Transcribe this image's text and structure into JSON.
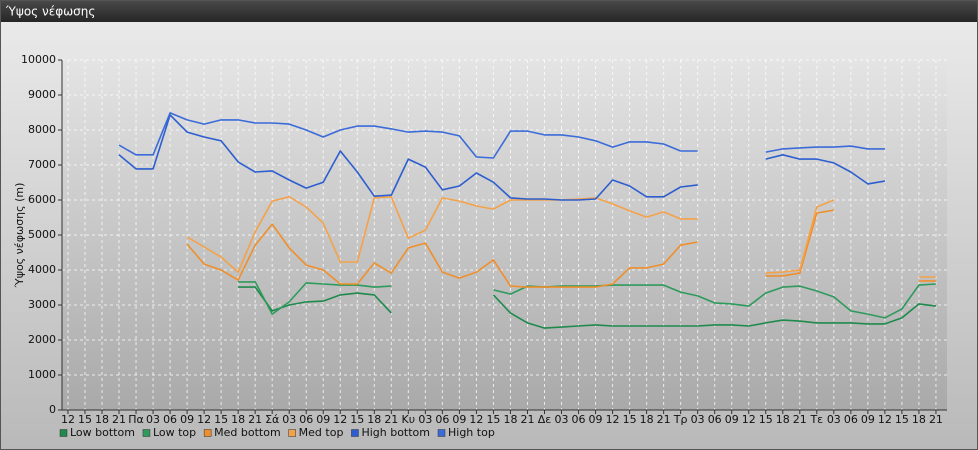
{
  "window_title": "Ύψος νέφωσης",
  "chart_data": {
    "type": "line",
    "y_label": "Ύψος νέφωσης (m)",
    "categories": [
      "12",
      "15",
      "18",
      "21",
      "Πα",
      "03",
      "06",
      "09",
      "12",
      "15",
      "18",
      "21",
      "Σά",
      "03",
      "06",
      "09",
      "12",
      "15",
      "18",
      "21",
      "Κυ",
      "03",
      "06",
      "09",
      "12",
      "15",
      "18",
      "21",
      "Δε",
      "03",
      "06",
      "09",
      "12",
      "15",
      "18",
      "21",
      "Τρ",
      "03",
      "06",
      "09",
      "12",
      "15",
      "18",
      "21",
      "Τε",
      "03",
      "06",
      "09",
      "12",
      "15",
      "18",
      "21"
    ],
    "ylim": [
      0,
      10000
    ],
    "yticks": [
      0,
      1000,
      2000,
      3000,
      4000,
      5000,
      6000,
      7000,
      8000,
      9000,
      10000
    ],
    "grid": true,
    "legend": "bottom-left",
    "series": [
      {
        "name": "Low bottom",
        "color": "#1f8a4c",
        "values": [
          null,
          null,
          null,
          null,
          null,
          null,
          null,
          null,
          null,
          null,
          3510,
          3510,
          2830,
          3000,
          3090,
          3110,
          3290,
          3340,
          3290,
          2770,
          null,
          null,
          null,
          null,
          null,
          3290,
          2770,
          2490,
          2340,
          2370,
          2400,
          2430,
          2400,
          2400,
          2400,
          2400,
          2400,
          2400,
          2430,
          2430,
          2400,
          2490,
          2570,
          2540,
          2490,
          2490,
          2490,
          2460,
          2460,
          2630,
          3030,
          2970
        ]
      },
      {
        "name": "Low top",
        "color": "#2e9a5c",
        "values": [
          null,
          null,
          null,
          null,
          null,
          null,
          null,
          null,
          null,
          null,
          3660,
          3660,
          2740,
          3090,
          3630,
          3600,
          3570,
          3570,
          3510,
          3540,
          null,
          null,
          null,
          null,
          null,
          3430,
          3310,
          3540,
          3510,
          3540,
          3540,
          3540,
          3570,
          3570,
          3570,
          3570,
          3370,
          3260,
          3060,
          3030,
          2970,
          3340,
          3510,
          3540,
          3400,
          3230,
          2830,
          2740,
          2630,
          2890,
          3570,
          3600
        ]
      },
      {
        "name": "Med bottom",
        "color": "#ef8f2c",
        "values": [
          null,
          null,
          null,
          null,
          null,
          null,
          null,
          4740,
          4170,
          4000,
          3710,
          4710,
          5310,
          4630,
          4140,
          4000,
          3600,
          3600,
          4200,
          3910,
          4630,
          4770,
          3940,
          3770,
          3940,
          4290,
          3540,
          3510,
          3510,
          3510,
          3510,
          3510,
          3600,
          4060,
          4060,
          4170,
          4710,
          4800,
          null,
          null,
          null,
          3830,
          3830,
          3910,
          5630,
          5710,
          null,
          null,
          null,
          null,
          3690,
          3690
        ]
      },
      {
        "name": "Med top",
        "color": "#f4a24a",
        "values": [
          null,
          null,
          null,
          null,
          null,
          null,
          null,
          4940,
          4660,
          4370,
          3940,
          5090,
          5970,
          6090,
          5800,
          5340,
          4230,
          4230,
          6060,
          6090,
          4910,
          5140,
          6060,
          5970,
          5830,
          5740,
          6000,
          6000,
          6000,
          6000,
          6030,
          6060,
          5890,
          5690,
          5510,
          5660,
          5460,
          5460,
          null,
          null,
          null,
          3910,
          3940,
          4000,
          5800,
          6000,
          null,
          null,
          null,
          null,
          3800,
          3800
        ]
      },
      {
        "name": "High bottom",
        "color": "#2d5ecf",
        "values": [
          null,
          null,
          null,
          7290,
          6890,
          6890,
          8430,
          7940,
          7800,
          7690,
          7090,
          6800,
          6830,
          6570,
          6340,
          6510,
          7400,
          6800,
          6110,
          6140,
          7170,
          6940,
          6290,
          6400,
          6770,
          6510,
          6060,
          6030,
          6030,
          6000,
          6000,
          6030,
          6570,
          6400,
          6090,
          6090,
          6370,
          6430,
          null,
          null,
          null,
          7170,
          7290,
          7170,
          7170,
          7060,
          6800,
          6460,
          6540,
          null,
          null,
          null
        ]
      },
      {
        "name": "High top",
        "color": "#3b6bd9",
        "values": [
          null,
          null,
          null,
          7570,
          7290,
          7290,
          8490,
          8290,
          8170,
          8290,
          8290,
          8200,
          8200,
          8170,
          8000,
          7800,
          8000,
          8110,
          8110,
          8030,
          7940,
          7970,
          7940,
          7830,
          7230,
          7200,
          7970,
          7970,
          7860,
          7860,
          7800,
          7690,
          7510,
          7660,
          7660,
          7600,
          7400,
          7400,
          null,
          null,
          null,
          7370,
          7460,
          7490,
          7510,
          7510,
          7540,
          7460,
          7460,
          null,
          null,
          null
        ]
      }
    ]
  }
}
